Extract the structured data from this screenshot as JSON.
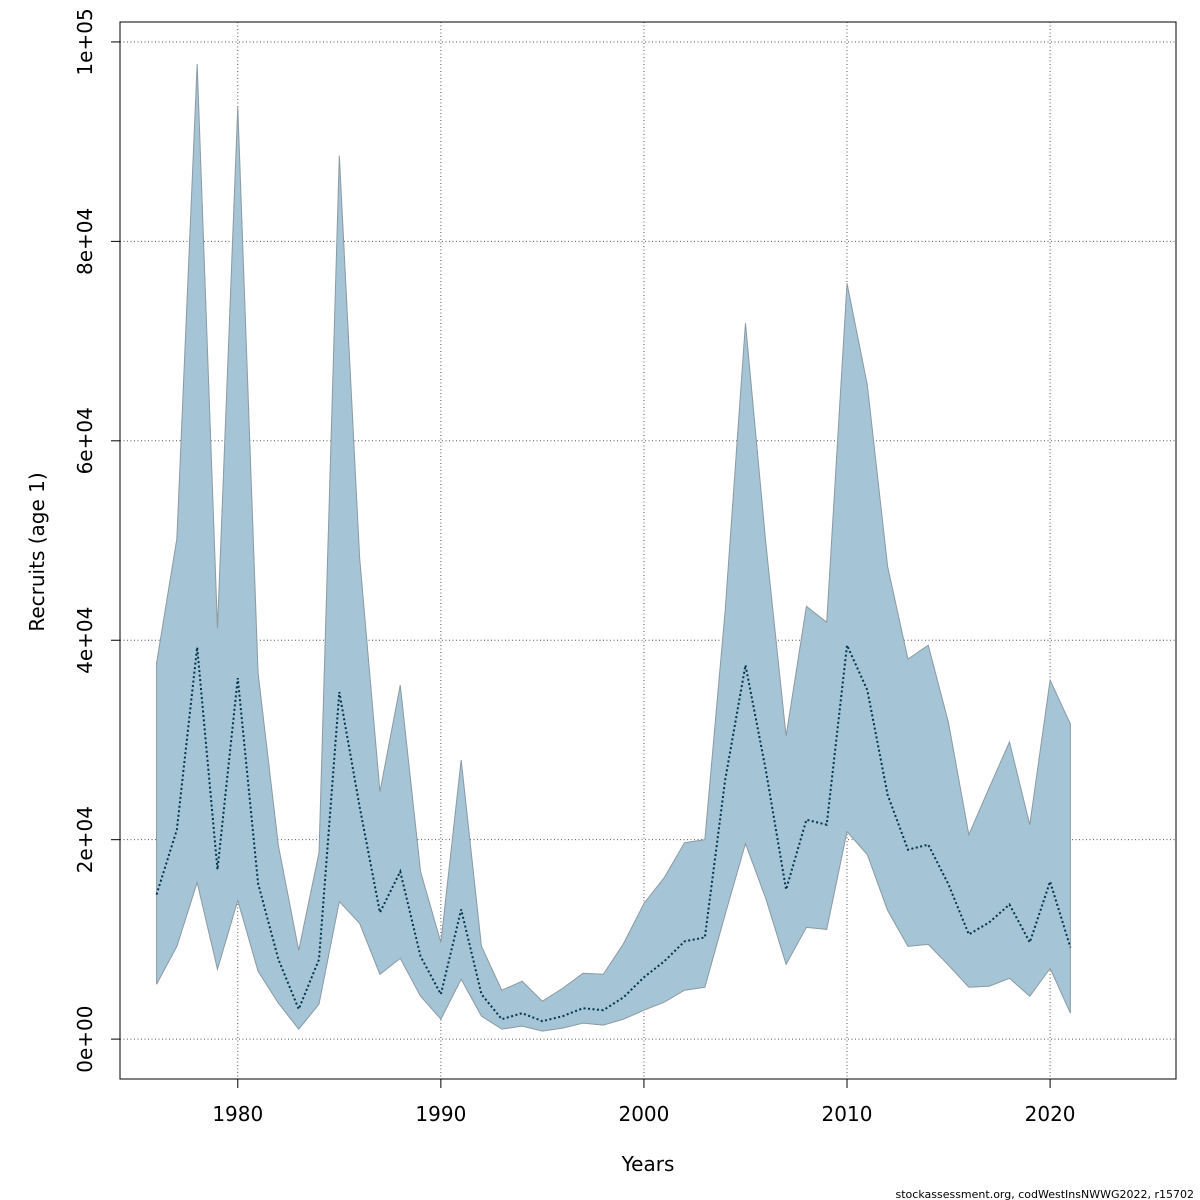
{
  "chart_data": {
    "type": "area",
    "title": "",
    "xlabel": "Years",
    "ylabel": "Recruits (age 1)",
    "xlim": [
      1974.2,
      2026.2
    ],
    "ylim": [
      -4000,
      102000
    ],
    "grid": true,
    "x_ticks": [
      1980,
      1990,
      2000,
      2010,
      2020
    ],
    "x_tick_labels": [
      "1980",
      "1990",
      "2000",
      "2010",
      "2020"
    ],
    "y_ticks": [
      0,
      20000,
      40000,
      60000,
      80000,
      100000
    ],
    "y_tick_labels": [
      "0e+00",
      "2e+04",
      "4e+04",
      "6e+04",
      "8e+04",
      "1e+05"
    ],
    "band_color": "#a5c4d5",
    "band_edge_color": "#8a9aa2",
    "line_color": "#00344d",
    "series": [
      {
        "name": "Recruits (age 1) estimate",
        "years": [
          1976,
          1977,
          1978,
          1979,
          1980,
          1981,
          1982,
          1983,
          1984,
          1985,
          1986,
          1987,
          1988,
          1989,
          1990,
          1991,
          1992,
          1993,
          1994,
          1995,
          1996,
          1997,
          1998,
          1999,
          2000,
          2001,
          2002,
          2003,
          2004,
          2005,
          2006,
          2007,
          2008,
          2009,
          2010,
          2011,
          2012,
          2013,
          2014,
          2015,
          2016,
          2017,
          2018,
          2019,
          2020,
          2021
        ],
        "values": [
          14500,
          21000,
          39300,
          17000,
          36200,
          15600,
          8000,
          3000,
          8000,
          34800,
          23300,
          12700,
          16800,
          8300,
          4500,
          13000,
          4500,
          2000,
          2600,
          1800,
          2300,
          3100,
          2900,
          4200,
          6200,
          7800,
          9800,
          10200,
          26000,
          37500,
          27000,
          15000,
          22000,
          21500,
          39500,
          35000,
          24500,
          19000,
          19500,
          15500,
          10500,
          11700,
          13500,
          9700,
          15800,
          9200
        ]
      },
      {
        "name": "Lower confidence bound",
        "years": [
          1976,
          1977,
          1978,
          1979,
          1980,
          1981,
          1982,
          1983,
          1984,
          1985,
          1986,
          1987,
          1988,
          1989,
          1990,
          1991,
          1992,
          1993,
          1994,
          1995,
          1996,
          1997,
          1998,
          1999,
          2000,
          2001,
          2002,
          2003,
          2004,
          2005,
          2006,
          2007,
          2008,
          2009,
          2010,
          2011,
          2012,
          2013,
          2014,
          2015,
          2016,
          2017,
          2018,
          2019,
          2020,
          2021
        ],
        "values": [
          5500,
          9300,
          15700,
          7000,
          13900,
          6800,
          3600,
          1000,
          3500,
          13800,
          11600,
          6500,
          8100,
          4300,
          2000,
          6000,
          2300,
          1000,
          1300,
          800,
          1100,
          1600,
          1400,
          2000,
          2900,
          3700,
          4900,
          5200,
          12500,
          19600,
          14100,
          7500,
          11200,
          11000,
          20800,
          18500,
          12900,
          9300,
          9500,
          7400,
          5200,
          5300,
          6100,
          4300,
          7100,
          2600
        ]
      },
      {
        "name": "Upper confidence bound",
        "years": [
          1976,
          1977,
          1978,
          1979,
          1980,
          1981,
          1982,
          1983,
          1984,
          1985,
          1986,
          1987,
          1988,
          1989,
          1990,
          1991,
          1992,
          1993,
          1994,
          1995,
          1996,
          1997,
          1998,
          1999,
          2000,
          2001,
          2002,
          2003,
          2004,
          2005,
          2006,
          2007,
          2008,
          2009,
          2010,
          2011,
          2012,
          2013,
          2014,
          2015,
          2016,
          2017,
          2018,
          2019,
          2020,
          2021
        ],
        "values": [
          37700,
          50200,
          97800,
          41200,
          93500,
          36700,
          19400,
          8900,
          18700,
          88600,
          48300,
          24800,
          35500,
          16800,
          9700,
          28000,
          9300,
          4900,
          5800,
          3800,
          5100,
          6600,
          6500,
          9600,
          13600,
          16200,
          19700,
          20000,
          43000,
          71800,
          49800,
          30400,
          43400,
          41800,
          75800,
          65600,
          47400,
          38100,
          39500,
          31700,
          20500,
          25200,
          29800,
          21500,
          36000,
          31600
        ]
      }
    ]
  },
  "footer": {
    "source": "stockassessment.org, codWestInsNWWG2022, r15702"
  }
}
